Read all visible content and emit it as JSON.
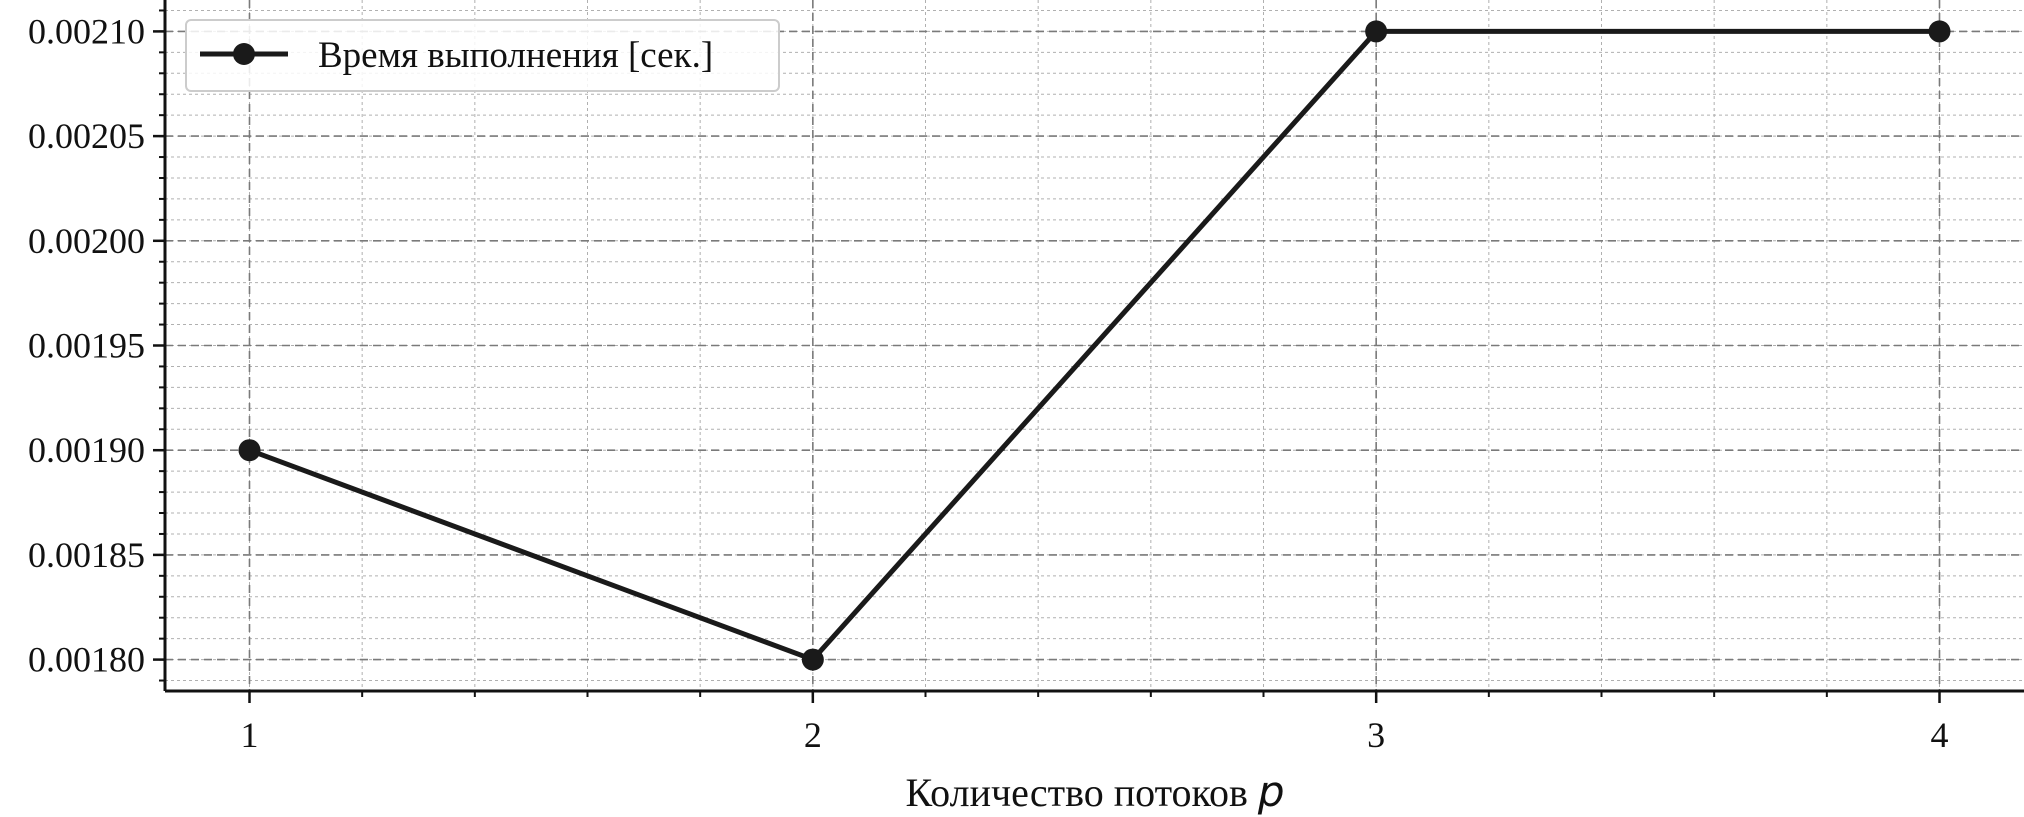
{
  "chart_data": {
    "type": "line",
    "xlabel": "Количество потоков",
    "xlabel_var": "p",
    "ylabel": "",
    "x": [
      1,
      2,
      3,
      4
    ],
    "x_ticks": [
      "1",
      "2",
      "3",
      "4"
    ],
    "xlim": [
      0.85,
      4.15
    ],
    "ylim": [
      0.001785,
      0.002115
    ],
    "y_ticks": [
      "0.00180",
      "0.00185",
      "0.00190",
      "0.00195",
      "0.00200",
      "0.00205",
      "0.00210"
    ],
    "y_tick_values": [
      0.0018,
      0.00185,
      0.0019,
      0.00195,
      0.002,
      0.00205,
      0.0021
    ],
    "grid": true,
    "legend_position": "top-left",
    "series": [
      {
        "name": "Время выполнения [сек.]",
        "color": "#1a1a1a",
        "marker": "circle",
        "values": [
          0.0019,
          0.0018,
          0.0021,
          0.0021
        ]
      }
    ]
  }
}
